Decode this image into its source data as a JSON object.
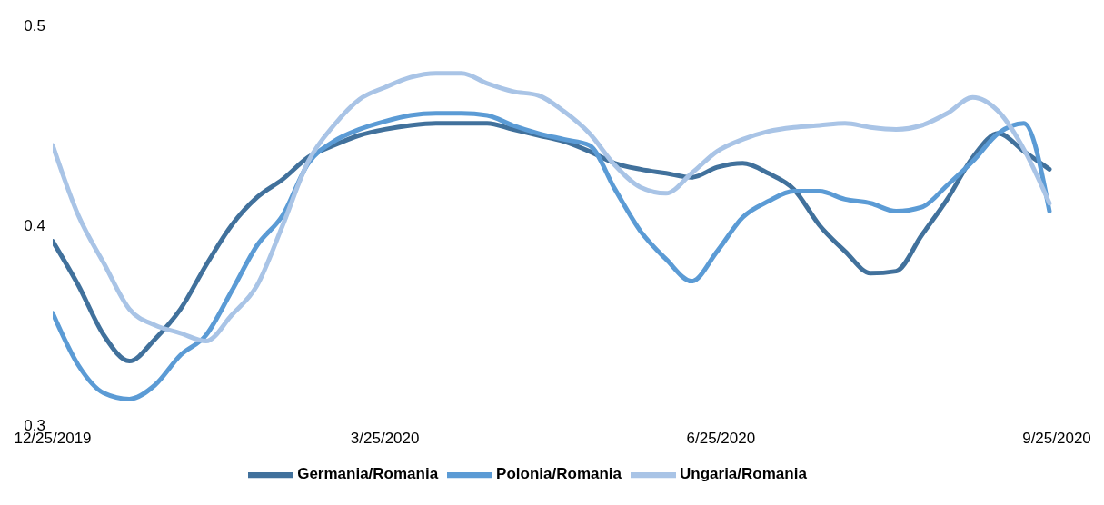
{
  "chart_data": {
    "type": "line",
    "x": [
      "2019-12-25",
      "2020-01-01",
      "2020-01-08",
      "2020-01-15",
      "2020-01-22",
      "2020-01-29",
      "2020-02-05",
      "2020-02-12",
      "2020-02-19",
      "2020-02-26",
      "2020-03-04",
      "2020-03-11",
      "2020-03-18",
      "2020-03-25",
      "2020-04-01",
      "2020-04-08",
      "2020-04-15",
      "2020-04-22",
      "2020-04-29",
      "2020-05-06",
      "2020-05-13",
      "2020-05-20",
      "2020-05-27",
      "2020-06-03",
      "2020-06-10",
      "2020-06-17",
      "2020-06-24",
      "2020-07-01",
      "2020-07-08",
      "2020-07-15",
      "2020-07-22",
      "2020-07-29",
      "2020-08-05",
      "2020-08-12",
      "2020-08-19",
      "2020-08-26",
      "2020-09-02",
      "2020-09-09",
      "2020-09-16",
      "2020-09-23"
    ],
    "series": [
      {
        "name": "Germania/Romania",
        "color": "#41719c",
        "values": [
          0.392,
          0.37,
          0.345,
          0.332,
          0.343,
          0.358,
          0.38,
          0.4,
          0.414,
          0.423,
          0.434,
          0.44,
          0.445,
          0.448,
          0.45,
          0.451,
          0.451,
          0.451,
          0.448,
          0.445,
          0.442,
          0.437,
          0.431,
          0.428,
          0.426,
          0.424,
          0.429,
          0.431,
          0.426,
          0.418,
          0.4,
          0.387,
          0.376,
          0.377,
          0.395,
          0.413,
          0.434,
          0.446,
          0.437,
          0.428
        ]
      },
      {
        "name": "Polonia/Romania",
        "color": "#5b9bd5",
        "values": [
          0.356,
          0.33,
          0.316,
          0.313,
          0.32,
          0.335,
          0.345,
          0.367,
          0.39,
          0.405,
          0.431,
          0.442,
          0.448,
          0.452,
          0.455,
          0.456,
          0.456,
          0.455,
          0.45,
          0.446,
          0.443,
          0.44,
          0.418,
          0.397,
          0.383,
          0.372,
          0.387,
          0.404,
          0.412,
          0.417,
          0.417,
          0.413,
          0.411,
          0.407,
          0.409,
          0.42,
          0.432,
          0.446,
          0.451,
          0.407
        ]
      },
      {
        "name": "Ungaria/Romania",
        "color": "#a9c4e6",
        "values": [
          0.44,
          0.405,
          0.381,
          0.358,
          0.35,
          0.346,
          0.342,
          0.355,
          0.37,
          0.4,
          0.432,
          0.45,
          0.463,
          0.469,
          0.474,
          0.476,
          0.476,
          0.471,
          0.467,
          0.465,
          0.457,
          0.446,
          0.43,
          0.419,
          0.416,
          0.426,
          0.437,
          0.443,
          0.447,
          0.449,
          0.45,
          0.451,
          0.449,
          0.448,
          0.45,
          0.456,
          0.464,
          0.457,
          0.438,
          0.411
        ]
      }
    ],
    "xlim": [
      "2019-12-25",
      "2020-09-25"
    ],
    "xticks": [
      {
        "value": "2019-12-25",
        "label": "12/25/2019"
      },
      {
        "value": "2020-03-25",
        "label": "3/25/2020"
      },
      {
        "value": "2020-06-25",
        "label": "6/25/2020"
      },
      {
        "value": "2020-09-25",
        "label": "9/25/2020"
      }
    ],
    "ylim": [
      0.3,
      0.5
    ],
    "yticks": [
      0.3,
      0.4,
      0.5
    ],
    "grid": false,
    "legend": "bottom",
    "marker": "none",
    "line_style": "solid"
  }
}
